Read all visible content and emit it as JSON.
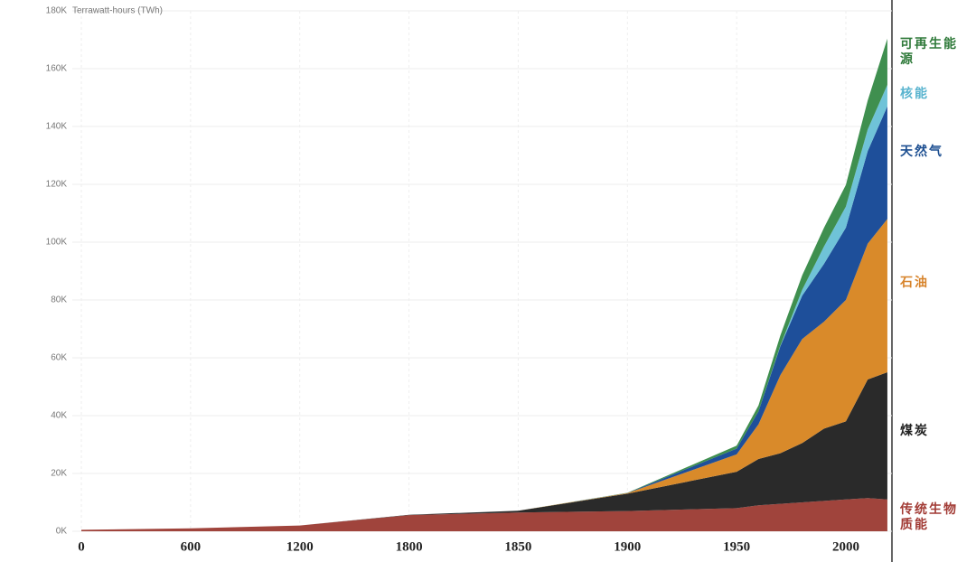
{
  "chart_data": {
    "type": "stacked_area",
    "y_axis_label": "Terrawatt-hours (TWh)",
    "x": [
      0,
      600,
      1200,
      1800,
      1850,
      1900,
      1950,
      1960,
      1970,
      1980,
      1990,
      2000,
      2010,
      2019
    ],
    "series": [
      {
        "name": "传统生物质能",
        "color": "#a0443c",
        "values": [
          500,
          1000,
          2000,
          5600,
          6500,
          7000,
          8000,
          9000,
          9500,
          10000,
          10500,
          11000,
          11500,
          11000
        ]
      },
      {
        "name": "煤炭",
        "color": "#2a2a2a",
        "values": [
          0,
          0,
          0,
          100,
          600,
          6000,
          12600,
          16000,
          17500,
          20500,
          25000,
          27000,
          41000,
          44000
        ]
      },
      {
        "name": "石油",
        "color": "#d98a2a",
        "values": [
          0,
          0,
          0,
          0,
          0,
          200,
          6000,
          12000,
          27000,
          36000,
          37000,
          42000,
          47000,
          53000
        ]
      },
      {
        "name": "天然气",
        "color": "#1e4f9a",
        "values": [
          0,
          0,
          0,
          0,
          0,
          60,
          2000,
          4500,
          10000,
          15000,
          20000,
          25000,
          32000,
          39000
        ]
      },
      {
        "name": "核能",
        "color": "#6fc3d8",
        "values": [
          0,
          0,
          0,
          0,
          0,
          0,
          0,
          0,
          200,
          2000,
          6000,
          7300,
          7500,
          7400
        ]
      },
      {
        "name": "可再生能源",
        "color": "#3f8f4f",
        "values": [
          0,
          0,
          0,
          0,
          0,
          50,
          1000,
          2000,
          3500,
          5000,
          6500,
          7500,
          10000,
          16000
        ]
      }
    ],
    "legend_colors": [
      "#a23b35",
      "#222222",
      "#d7832a",
      "#1d4f91",
      "#5ab4cf",
      "#2f7a3a"
    ],
    "ylim": [
      0,
      180000
    ],
    "yticks": [
      {
        "value": 0,
        "label": "0K"
      },
      {
        "value": 20000,
        "label": "20K"
      },
      {
        "value": 40000,
        "label": "40K"
      },
      {
        "value": 60000,
        "label": "60K"
      },
      {
        "value": 80000,
        "label": "80K"
      },
      {
        "value": 100000,
        "label": "100K"
      },
      {
        "value": 120000,
        "label": "120K"
      },
      {
        "value": 140000,
        "label": "140K"
      },
      {
        "value": 160000,
        "label": "160K"
      },
      {
        "value": 180000,
        "label": "180K"
      }
    ],
    "xticks": [
      0,
      600,
      1200,
      1800,
      1850,
      1900,
      1950,
      2000
    ],
    "grid": true
  }
}
